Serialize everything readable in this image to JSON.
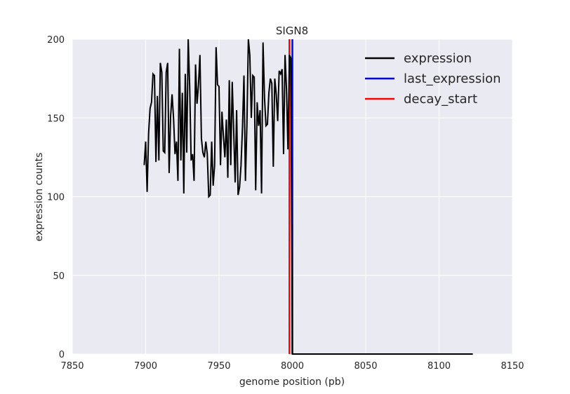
{
  "chart_data": {
    "type": "line",
    "title": "SIGN8",
    "xlabel": "genome position (pb)",
    "ylabel": "expression counts",
    "xlim": [
      7850,
      8150
    ],
    "ylim": [
      0,
      200
    ],
    "xticks": [
      7850,
      7900,
      7950,
      8000,
      8050,
      8100,
      8150
    ],
    "yticks": [
      0,
      50,
      100,
      150,
      200
    ],
    "grid": true,
    "legend_position": "top-right",
    "colors": {
      "background": "#eaeaf2",
      "grid": "#ffffff",
      "expression": "#000000",
      "last_expression": "#0000ff",
      "decay_start": "#ff0000"
    },
    "series": [
      {
        "name": "expression",
        "x": [
          7899,
          7900,
          7901,
          7902,
          7903,
          7904,
          7905,
          7906,
          7907,
          7908,
          7909,
          7910,
          7911,
          7912,
          7913,
          7914,
          7915,
          7916,
          7917,
          7918,
          7919,
          7920,
          7921,
          7922,
          7923,
          7924,
          7925,
          7926,
          7927,
          7928,
          7929,
          7930,
          7931,
          7932,
          7933,
          7934,
          7935,
          7936,
          7937,
          7938,
          7939,
          7940,
          7941,
          7942,
          7943,
          7944,
          7945,
          7946,
          7947,
          7948,
          7949,
          7950,
          7951,
          7952,
          7953,
          7954,
          7955,
          7956,
          7957,
          7958,
          7959,
          7960,
          7961,
          7962,
          7963,
          7964,
          7965,
          7966,
          7967,
          7968,
          7969,
          7970,
          7971,
          7972,
          7973,
          7974,
          7975,
          7976,
          7977,
          7978,
          7979,
          7980,
          7981,
          7982,
          7983,
          7984,
          7985,
          7986,
          7987,
          7988,
          7989,
          7990,
          7991,
          7992,
          7993,
          7994,
          7995,
          7996,
          7997,
          7998,
          7999,
          8000,
          8123
        ],
        "y": [
          120,
          135,
          103,
          140,
          156,
          160,
          178,
          177,
          122,
          164,
          123,
          185,
          179,
          129,
          128,
          179,
          185,
          115,
          151,
          165,
          150,
          127,
          135,
          110,
          194,
          123,
          166,
          102,
          178,
          128,
          200,
          170,
          123,
          127,
          110,
          184,
          159,
          171,
          190,
          137,
          128,
          125,
          135,
          127,
          100,
          101,
          135,
          107,
          120,
          195,
          171,
          170,
          120,
          154,
          138,
          125,
          149,
          112,
          174,
          120,
          173,
          142,
          109,
          155,
          101,
          106,
          120,
          144,
          177,
          110,
          145,
          200,
          190,
          150,
          177,
          176,
          104,
          160,
          145,
          155,
          102,
          198,
          163,
          145,
          146,
          166,
          175,
          172,
          119,
          175,
          165,
          148,
          180,
          178,
          181,
          127,
          190,
          168,
          130,
          190,
          188,
          0,
          0
        ]
      },
      {
        "name": "last_expression",
        "x": 8000
      },
      {
        "name": "decay_start",
        "x": 7998
      }
    ]
  }
}
